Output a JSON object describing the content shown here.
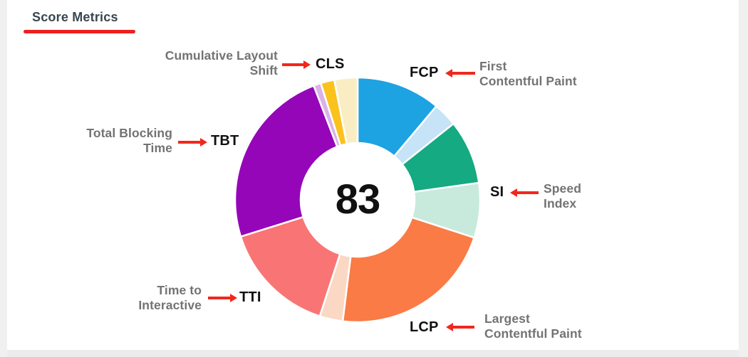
{
  "theme": {
    "card_bg": "#ffffff",
    "page_gutter": "#f0f0f0",
    "title_color": "#37474f",
    "underline_color": "#ee1f1f",
    "accent_red": "#f2271c",
    "label_gray": "#737373",
    "abbr_black": "#111111",
    "score_color": "#111111"
  },
  "header": {
    "title": "Score Metrics"
  },
  "callouts": {
    "cls": {
      "abbr": "CLS",
      "line1": "Cumulative Layout",
      "line2": "Shift"
    },
    "fcp": {
      "abbr": "FCP",
      "line1": "First",
      "line2": "Contentful Paint"
    },
    "si": {
      "abbr": "SI",
      "line1": "Speed",
      "line2": "Index"
    },
    "lcp": {
      "abbr": "LCP",
      "line1": "Largest",
      "line2": "Contentful Paint"
    },
    "tti": {
      "abbr": "TTI",
      "line1": "Time to",
      "line2": "Interactive"
    },
    "tbt": {
      "abbr": "TBT",
      "line1": "Total Blocking",
      "line2": "Time"
    }
  },
  "chart_data": {
    "type": "donut",
    "title": "Score Metrics",
    "center_score": 83,
    "outer_radius_px": 172,
    "inner_radius_px": 80,
    "gap_stroke_px": 2.5,
    "start_position": "12-o-clock, clockwise",
    "legend_position": "radial callouts with arrows",
    "metrics": [
      {
        "abbr": "FCP",
        "name": "First Contentful Paint",
        "weight_pct": 15,
        "approx_metric_score": 74,
        "scored_color": "#1da2e2",
        "remainder_color": "#c6e3f7"
      },
      {
        "abbr": "SI",
        "name": "Speed Index",
        "weight_pct": 15,
        "approx_metric_score": 56,
        "scored_color": "#15aa82",
        "remainder_color": "#c7eadd"
      },
      {
        "abbr": "LCP",
        "name": "Largest Contentful Paint",
        "weight_pct": 25,
        "approx_metric_score": 88,
        "scored_color": "#fa7b45",
        "remainder_color": "#fbd8c3"
      },
      {
        "abbr": "TTI",
        "name": "Time to Interactive",
        "weight_pct": 15,
        "approx_metric_score": 100,
        "scored_color": "#f97575",
        "remainder_color": null
      },
      {
        "abbr": "TBT",
        "name": "Total Blocking Time",
        "weight_pct": 25,
        "approx_metric_score": 96,
        "scored_color": "#9506b9",
        "remainder_color": "#d9b3e8"
      },
      {
        "abbr": "CLS",
        "name": "Cumulative Layout Shift",
        "weight_pct": 5,
        "approx_metric_score": 37,
        "scored_color": "#fbc21d",
        "remainder_color": "#faedc4"
      }
    ],
    "segments": [
      {
        "metric": "FCP",
        "part": "scored",
        "start_deg": 0,
        "end_deg": 40,
        "color": "#1da2e2"
      },
      {
        "metric": "FCP",
        "part": "remainder",
        "start_deg": 40,
        "end_deg": 51.5,
        "color": "#c6e3f7"
      },
      {
        "metric": "SI",
        "part": "scored",
        "start_deg": 51.5,
        "end_deg": 82,
        "color": "#15aa82"
      },
      {
        "metric": "SI",
        "part": "remainder",
        "start_deg": 82,
        "end_deg": 108,
        "color": "#c7eadd"
      },
      {
        "metric": "LCP",
        "part": "scored",
        "start_deg": 108,
        "end_deg": 187,
        "color": "#fa7b45"
      },
      {
        "metric": "LCP",
        "part": "remainder",
        "start_deg": 187,
        "end_deg": 198,
        "color": "#fbd8c3"
      },
      {
        "metric": "TTI",
        "part": "scored",
        "start_deg": 198,
        "end_deg": 252.5,
        "color": "#f97575"
      },
      {
        "metric": "TBT",
        "part": "scored",
        "start_deg": 252.5,
        "end_deg": 339,
        "color": "#9506b9"
      },
      {
        "metric": "TBT",
        "part": "remainder",
        "start_deg": 339,
        "end_deg": 342.5,
        "color": "#d9b3e8"
      },
      {
        "metric": "CLS",
        "part": "scored",
        "start_deg": 342.5,
        "end_deg": 349,
        "color": "#fbc21d"
      },
      {
        "metric": "CLS",
        "part": "remainder",
        "start_deg": 349,
        "end_deg": 360,
        "color": "#faedc4"
      }
    ]
  }
}
